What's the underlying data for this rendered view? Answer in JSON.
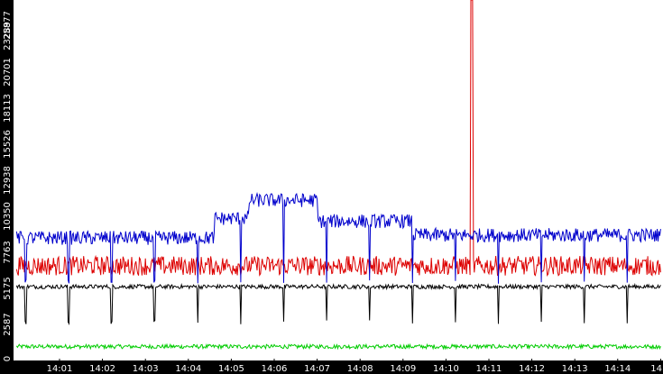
{
  "chart_data": {
    "type": "line",
    "title": "",
    "xlabel": "",
    "ylabel": "",
    "x_tick_labels": [
      "14:01",
      "14:02",
      "14:03",
      "14:04",
      "14:05",
      "14:06",
      "14:07",
      "14:08",
      "14:09",
      "14:10",
      "14:11",
      "14:12",
      "14:13",
      "14:14",
      "14"
    ],
    "y_tick_labels": [
      "0",
      "2587",
      "5175",
      "7763",
      "10350",
      "12938",
      "15526",
      "18113",
      "20701",
      "23289",
      "25877"
    ],
    "ylim": [
      0,
      25877
    ],
    "grid": false,
    "legend": "none",
    "background": "#ffffff",
    "axis_color": "#000000",
    "series_colors": {
      "blue": "#0000cc",
      "red": "#dd0000",
      "black": "#000000",
      "green": "#00cc00"
    },
    "series": [
      {
        "color": "blue",
        "baseline": 8800,
        "noise": 500,
        "dip_to": 5500,
        "segments": [
          {
            "from": 0,
            "to": 4.6,
            "value": 8800
          },
          {
            "from": 4.6,
            "to": 5.4,
            "value": 10200
          },
          {
            "from": 5.4,
            "to": 7.0,
            "value": 11500
          },
          {
            "from": 7.0,
            "to": 9.2,
            "value": 10000
          },
          {
            "from": 9.2,
            "to": 15.0,
            "value": 9000
          }
        ]
      },
      {
        "color": "red",
        "baseline": 6800,
        "noise": 700,
        "spike_at": 10.6,
        "spike_value": 25877
      },
      {
        "color": "black",
        "baseline": 5300,
        "noise": 150,
        "dip_to": 2600
      },
      {
        "color": "green",
        "baseline": 1000,
        "noise": 150
      }
    ]
  }
}
